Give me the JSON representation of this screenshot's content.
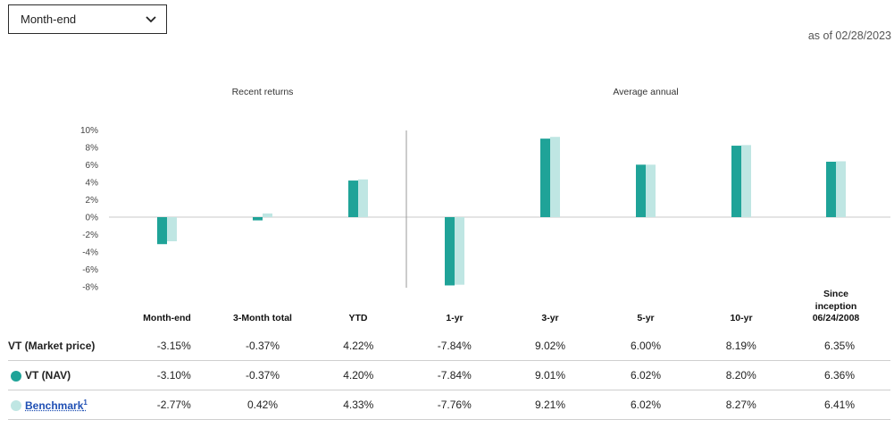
{
  "dropdown": {
    "selected": "Month-end"
  },
  "as_of": "as of 02/28/2023",
  "colors": {
    "market": "#1fa398",
    "nav": "#1fa398",
    "benchmark": "#bfe6e3",
    "axis": "#c8c8c8"
  },
  "chart_data": {
    "type": "bar",
    "group_labels": [
      "Recent returns",
      "Average annual"
    ],
    "categories": [
      "Month-end",
      "3-Month total",
      "YTD",
      "1-yr",
      "3-yr",
      "5-yr",
      "10-yr",
      "Since inception 06/24/2008"
    ],
    "yticks": [
      "10%",
      "8%",
      "6%",
      "4%",
      "2%",
      "0%",
      "-2%",
      "-4%",
      "-6%",
      "-8%"
    ],
    "ylim": [
      -8,
      10
    ],
    "series": [
      {
        "name": "VT (NAV)",
        "values": [
          -3.1,
          -0.37,
          4.2,
          -7.84,
          9.01,
          6.02,
          8.2,
          6.36
        ]
      },
      {
        "name": "Benchmark",
        "values": [
          -2.77,
          0.42,
          4.33,
          -7.76,
          9.21,
          6.02,
          8.27,
          6.41
        ]
      }
    ]
  },
  "table": {
    "headers": [
      "Month-end",
      "3-Month total",
      "YTD",
      "1-yr",
      "3-yr",
      "5-yr",
      "10-yr"
    ],
    "since_inception_header": [
      "Since inception",
      "06/24/2008"
    ],
    "rows": [
      {
        "label": "VT (Market price)",
        "values": [
          "-3.15%",
          "-0.37%",
          "4.22%",
          "-7.84%",
          "9.02%",
          "6.00%",
          "8.19%",
          "6.35%"
        ]
      },
      {
        "label": "VT (NAV)",
        "values": [
          "-3.10%",
          "-0.37%",
          "4.20%",
          "-7.84%",
          "9.01%",
          "6.02%",
          "8.20%",
          "6.36%"
        ]
      },
      {
        "label": "Benchmark",
        "footnote": "1",
        "values": [
          "-2.77%",
          "0.42%",
          "4.33%",
          "-7.76%",
          "9.21%",
          "6.02%",
          "8.27%",
          "6.41%"
        ]
      }
    ]
  }
}
